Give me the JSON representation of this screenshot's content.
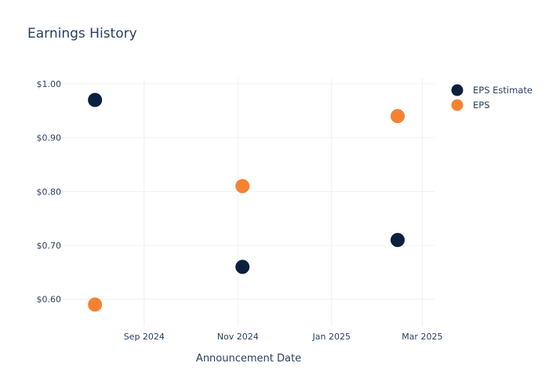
{
  "chart_data": {
    "type": "scatter",
    "title": "Earnings History",
    "xlabel": "Announcement Date",
    "ylabel": "",
    "x_ticks": [
      {
        "date": "2024-09-01",
        "label": "Sep 2024"
      },
      {
        "date": "2024-11-01",
        "label": "Nov 2024"
      },
      {
        "date": "2025-01-01",
        "label": "Jan 2025"
      },
      {
        "date": "2025-03-01",
        "label": "Mar 2025"
      }
    ],
    "y_ticks": [
      {
        "value": 0.6,
        "label": "$0.60"
      },
      {
        "value": 0.7,
        "label": "$0.70"
      },
      {
        "value": 0.8,
        "label": "$0.80"
      },
      {
        "value": 0.9,
        "label": "$0.90"
      },
      {
        "value": 1.0,
        "label": "$1.00"
      }
    ],
    "xlim": [
      "2024-07-10",
      "2025-03-09"
    ],
    "ylim": [
      0.55,
      1.01
    ],
    "grid": true,
    "legend_position": "top-right",
    "series": [
      {
        "name": "EPS Estimate",
        "color": "#0b1f3f",
        "points": [
          {
            "x": "2024-07-31",
            "y": 0.97
          },
          {
            "x": "2024-11-04",
            "y": 0.66
          },
          {
            "x": "2025-02-13",
            "y": 0.71
          }
        ]
      },
      {
        "name": "EPS",
        "color": "#f58232",
        "points": [
          {
            "x": "2024-07-31",
            "y": 0.59
          },
          {
            "x": "2024-11-04",
            "y": 0.81
          },
          {
            "x": "2025-02-13",
            "y": 0.94
          }
        ]
      }
    ]
  }
}
